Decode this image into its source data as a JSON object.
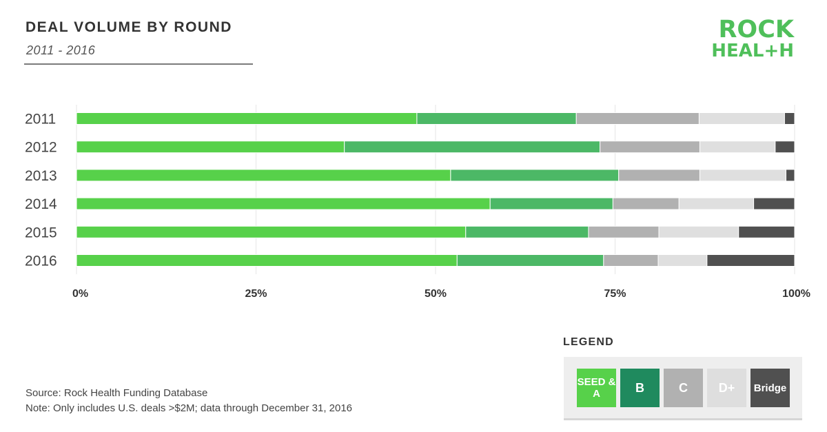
{
  "header": {
    "title": "DEAL VOLUME BY ROUND",
    "subtitle": "2011 - 2016"
  },
  "logo": {
    "line1": "ROCK",
    "line2": "HEAL+H",
    "color": "#4fbf5a"
  },
  "chart_data": {
    "type": "bar",
    "orientation": "horizontal",
    "stacked": true,
    "categories": [
      "2011",
      "2012",
      "2013",
      "2014",
      "2015",
      "2016"
    ],
    "x_ticks": [
      "0%",
      "25%",
      "50%",
      "75%",
      "100%"
    ],
    "xlim": [
      0,
      100
    ],
    "grid": true,
    "legend_placement": "bottom-right",
    "series": [
      {
        "name": "SEED & A",
        "color": "#57d14a",
        "values": [
          47.4,
          37.3,
          52.1,
          57.6,
          54.2,
          53.0
        ]
      },
      {
        "name": "B",
        "color": "#4cb866",
        "values": [
          22.2,
          35.6,
          23.4,
          17.1,
          17.1,
          20.4
        ]
      },
      {
        "name": "C",
        "color": "#b1b1b1",
        "values": [
          17.1,
          13.9,
          11.3,
          9.2,
          9.8,
          7.6
        ]
      },
      {
        "name": "D+",
        "color": "#dfdfdf",
        "values": [
          11.9,
          10.5,
          12.0,
          10.4,
          11.1,
          6.8
        ]
      },
      {
        "name": "Bridge",
        "color": "#505050",
        "values": [
          1.4,
          2.7,
          1.2,
          5.7,
          7.8,
          12.2
        ]
      }
    ]
  },
  "legend": {
    "title": "LEGEND",
    "items": [
      {
        "label": "SEED & A",
        "color": "#57d14a"
      },
      {
        "label": "B",
        "color": "#1f8a5e"
      },
      {
        "label": "C",
        "color": "#b1b1b1"
      },
      {
        "label": "D+",
        "color": "#dedede"
      },
      {
        "label": "Bridge",
        "color": "#505050"
      }
    ]
  },
  "footer": {
    "source": "Source: Rock Health Funding Database",
    "note": "Note: Only includes U.S. deals >$2M; data through December 31, 2016"
  }
}
